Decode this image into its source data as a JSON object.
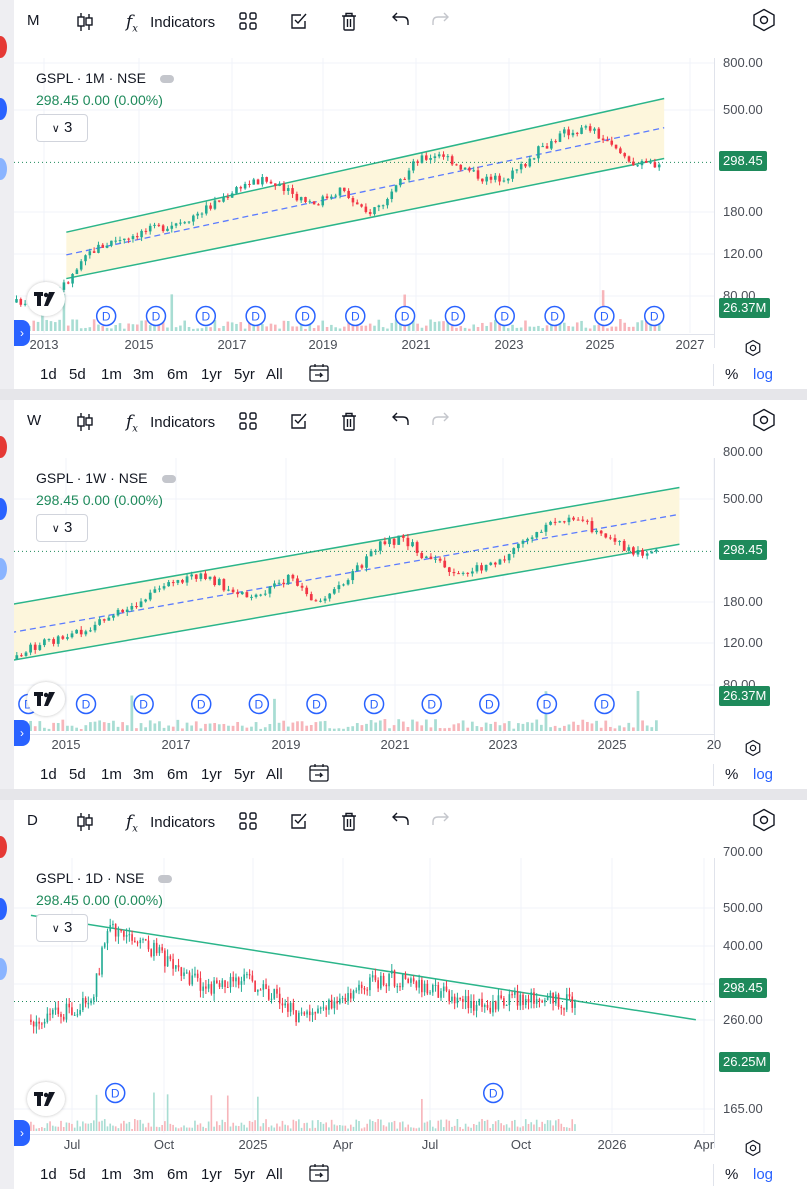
{
  "toolbar": {
    "indicators_label": "Indicators"
  },
  "colors": {
    "up": "#22ab94",
    "down": "#f23645",
    "channel_fill": "#fdf6dc",
    "channel_line": "#2bb58a",
    "midline": "#5b7bff",
    "price_tag": "#1e8a5b",
    "dividend_marker": "#2962ff"
  },
  "ranges": [
    "1d",
    "5d",
    "1m",
    "3m",
    "6m",
    "1yr",
    "5yr",
    "All"
  ],
  "scale_buttons": {
    "percent": "%",
    "log": "log"
  },
  "panels": [
    {
      "interval_button": "M",
      "symbol_line": "GSPL · 1M · NSE",
      "price_line": "298.45  0.00 (0.00%)",
      "collapse_label": "3",
      "price_tag": "298.45",
      "volume_tag": "26.37M",
      "dividend_marker_label": "D",
      "price_axis": [
        "800.00",
        "500.00",
        "180.00",
        "120.00",
        "80.00"
      ],
      "time_axis": [
        "2013",
        "2015",
        "2017",
        "2019",
        "2021",
        "2023",
        "2025",
        "2027"
      ]
    },
    {
      "interval_button": "W",
      "symbol_line": "GSPL · 1W · NSE",
      "price_line": "298.45  0.00 (0.00%)",
      "collapse_label": "3",
      "price_tag": "298.45",
      "volume_tag": "26.37M",
      "dividend_marker_label": "D",
      "price_axis": [
        "800.00",
        "500.00",
        "180.00",
        "120.00",
        "80.00"
      ],
      "time_axis": [
        "2015",
        "2017",
        "2019",
        "2021",
        "2023",
        "2025",
        "20"
      ]
    },
    {
      "interval_button": "D",
      "symbol_line": "GSPL · 1D · NSE",
      "price_line": "298.45  0.00 (0.00%)",
      "collapse_label": "3",
      "price_tag": "298.45",
      "volume_tag": "26.25M",
      "dividend_marker_label": "D",
      "price_axis": [
        "700.00",
        "500.00",
        "400.00",
        "320.00",
        "260.00",
        "165.00"
      ],
      "time_axis": [
        "Jul",
        "Oct",
        "2025",
        "Apr",
        "Jul",
        "Oct",
        "2026",
        "Apr"
      ]
    }
  ],
  "chart_data": [
    {
      "type": "candlestick",
      "interval": "1M",
      "scale": "log",
      "ylim": [
        60,
        900
      ],
      "x": [
        2013.0,
        2013.5,
        2014.0,
        2014.5,
        2015.0,
        2015.5,
        2016.0,
        2016.5,
        2017.0,
        2017.5,
        2018.0,
        2018.5,
        2019.0,
        2019.5,
        2020.0,
        2020.5,
        2021.0,
        2021.5,
        2022.0,
        2022.5,
        2023.0,
        2023.5,
        2024.0,
        2024.5,
        2025.0,
        2025.5,
        2025.9
      ],
      "close": [
        75,
        80,
        90,
        125,
        140,
        150,
        160,
        175,
        200,
        240,
        250,
        220,
        200,
        230,
        180,
        210,
        300,
        330,
        280,
        250,
        270,
        340,
        400,
        420,
        340,
        290,
        298
      ],
      "last_price": 298.45,
      "channel": {
        "x": [
          2014.0,
          2026.0
        ],
        "upper": [
          150,
          560
        ],
        "lower": [
          95,
          310
        ],
        "mid": [
          120,
          420
        ]
      },
      "dividends_x": [
        2014.8,
        2015.8,
        2016.8,
        2017.8,
        2018.8,
        2019.8,
        2020.8,
        2021.8,
        2022.8,
        2023.8,
        2024.8,
        2025.8
      ]
    },
    {
      "type": "candlestick",
      "interval": "1W",
      "scale": "log",
      "ylim": [
        60,
        900
      ],
      "x": [
        2014.0,
        2014.5,
        2015.0,
        2015.5,
        2016.0,
        2016.5,
        2017.0,
        2017.5,
        2018.0,
        2018.5,
        2019.0,
        2019.5,
        2020.0,
        2020.5,
        2021.0,
        2021.5,
        2022.0,
        2022.5,
        2023.0,
        2023.5,
        2024.0,
        2024.5,
        2025.0,
        2025.5,
        2025.9
      ],
      "close": [
        70,
        100,
        115,
        125,
        140,
        160,
        185,
        220,
        240,
        205,
        190,
        230,
        180,
        215,
        310,
        340,
        270,
        245,
        260,
        310,
        390,
        420,
        340,
        300,
        298
      ],
      "last_price": 298.45,
      "channel": {
        "x": [
          2014.0,
          2026.3
        ],
        "upper": [
          165,
          560
        ],
        "lower": [
          95,
          320
        ],
        "mid": [
          125,
          430
        ]
      },
      "dividends_x": [
        2015.0,
        2016.0,
        2017.0,
        2018.0,
        2019.0,
        2020.0,
        2021.0,
        2022.0,
        2023.0,
        2024.0,
        2025.0
      ]
    },
    {
      "type": "candlestick",
      "interval": "1D",
      "scale": "log",
      "ylim": [
        150,
        800
      ],
      "x": [
        "2024-06",
        "2024-07",
        "2024-08",
        "2024-08-20",
        "2024-09",
        "2024-10",
        "2024-11",
        "2024-12",
        "2025-01",
        "2025-02",
        "2025-03",
        "2025-04",
        "2025-05",
        "2025-06",
        "2025-07",
        "2025-08",
        "2025-09",
        "2025-10",
        "2025-11",
        "2025-12"
      ],
      "close": [
        270,
        280,
        300,
        470,
        420,
        400,
        350,
        320,
        340,
        310,
        270,
        300,
        330,
        340,
        320,
        310,
        290,
        305,
        300,
        298
      ],
      "last_price": 298.45,
      "trendline": {
        "x": [
          "2024-06",
          "2026-04"
        ],
        "y": [
          480,
          270
        ]
      },
      "dividends_x": [
        "2024-08-25",
        "2025-09-10"
      ]
    }
  ]
}
